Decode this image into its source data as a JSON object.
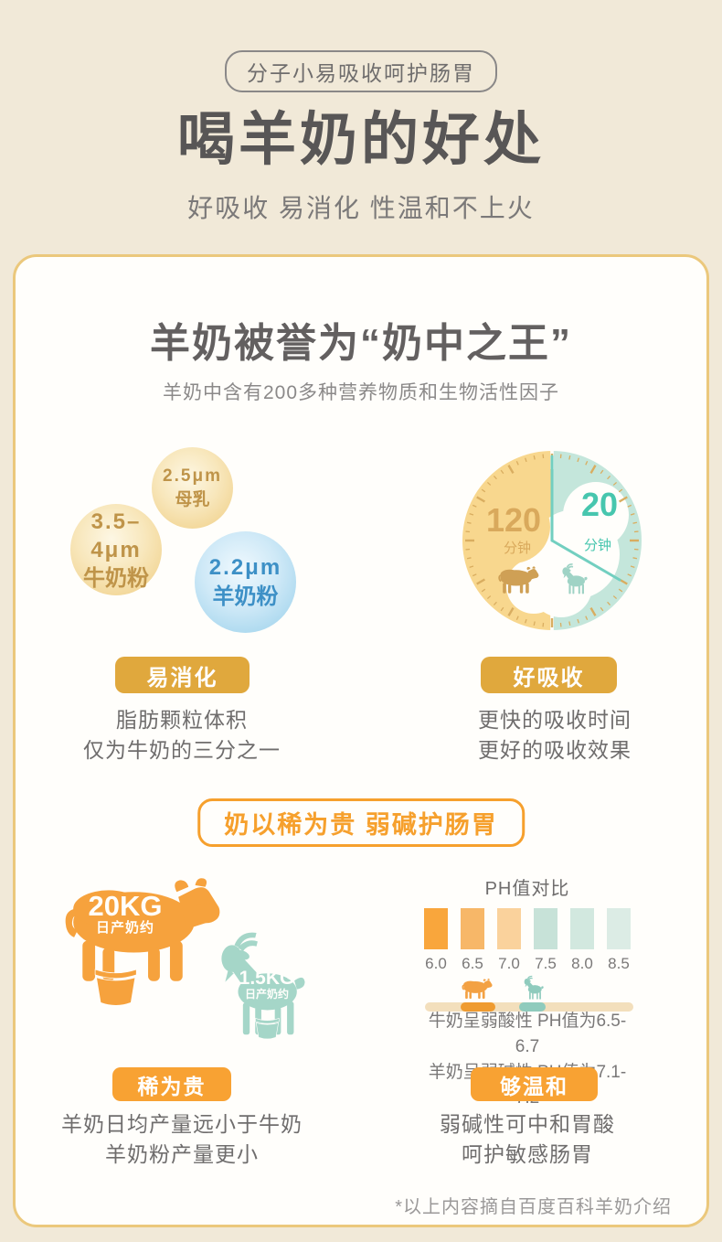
{
  "header": {
    "badge": "分子小易吸收呵护肠胃",
    "title": "喝羊奶的好处",
    "subtitle": "好吸收 易消化 性温和不上火"
  },
  "card": {
    "title": "羊奶被誉为“奶中之王”",
    "subtitle": "羊奶中含有200多种营养物质和生物活性因子",
    "bubbles": {
      "mother": {
        "size": "2.5μm",
        "label": "母乳"
      },
      "cow_milk": {
        "size": "3.5–4μm",
        "label": "牛奶粉"
      },
      "goat_milk": {
        "size": "2.2μm",
        "label": "羊奶粉"
      }
    },
    "clock": {
      "cow_time": "120",
      "cow_unit": "分钟",
      "goat_time": "20",
      "goat_unit": "分钟"
    },
    "digest": {
      "pill": "易消化",
      "line1": "脂肪颗粒体积",
      "line2": "仅为牛奶的三分之一"
    },
    "absorb": {
      "pill": "好吸收",
      "line1": "更快的吸收时间",
      "line2": "更好的吸收效果"
    },
    "mid_badge": "奶以稀为贵 弱碱护肠胃",
    "yield": {
      "cow_amount": "20KG",
      "cow_label": "日产奶约",
      "goat_amount": "1.5KG",
      "goat_label": "日产奶约"
    },
    "ph": {
      "title": "PH值对比",
      "scale": [
        "6.0",
        "6.5",
        "7.0",
        "7.5",
        "8.0",
        "8.5"
      ],
      "swatch_colors": [
        "#f9a63c",
        "#f7b768",
        "#fad29c",
        "#c7e2d8",
        "#d2e8df",
        "#dcece5"
      ],
      "line1": "牛奶呈弱酸性 PH值为6.5-6.7",
      "line2": "羊奶呈弱碱性 PH值为7.1-7.2"
    },
    "rare": {
      "pill": "稀为贵",
      "line1": "羊奶日均产量远小于牛奶",
      "line2": "羊奶粉产量更小"
    },
    "mild": {
      "pill": "够温和",
      "line1": "弱碱性可中和胃酸",
      "line2": "呵护敏感肠胃"
    },
    "footnote": "*以上内容摘自百度百科羊奶介绍"
  },
  "colors": {
    "page_bg": "#f1e9d8",
    "card_border": "#ebc87c",
    "gold_pill": "#e0a83d",
    "orange_accent": "#f7a233",
    "cow_orange": "#f6a23d",
    "goat_teal": "#a5d6c8",
    "clock_gold": "#f8d78e",
    "clock_teal": "#c4e6db",
    "bubble_blue_text": "#3d90c6",
    "bubble_gold_text": "#bf9449"
  }
}
